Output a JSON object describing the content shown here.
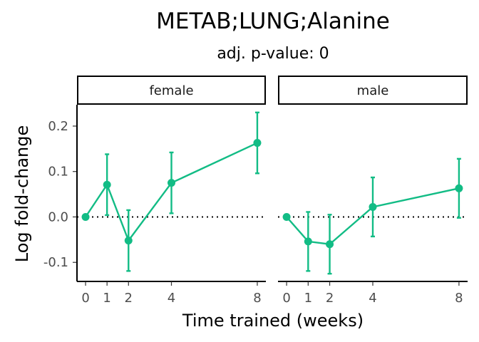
{
  "chart_data": {
    "type": "line",
    "title": "METAB;LUNG;Alanine",
    "subtitle": "adj. p-value: 0",
    "xlabel": "Time trained (weeks)",
    "ylabel": "Log fold-change",
    "x_ticks": [
      "0",
      "1",
      "2",
      "4",
      "8"
    ],
    "y_ticks": [
      "-0.1",
      "0.0",
      "0.1",
      "0.2"
    ],
    "xlim": [
      -0.4,
      8.4
    ],
    "ylim": [
      -0.142,
      0.247
    ],
    "reference_line": {
      "y": 0,
      "style": "dotted"
    },
    "color": "#12BC85",
    "facets": [
      {
        "label": "female",
        "x": [
          0,
          1,
          2,
          4,
          8
        ],
        "y": [
          0.0,
          0.071,
          -0.052,
          0.075,
          0.163
        ],
        "ymin": [
          0.0,
          0.004,
          -0.119,
          0.008,
          0.096
        ],
        "ymax": [
          0.0,
          0.138,
          0.015,
          0.142,
          0.23
        ]
      },
      {
        "label": "male",
        "x": [
          0,
          1,
          2,
          4,
          8
        ],
        "y": [
          0.0,
          -0.054,
          -0.06,
          0.022,
          0.063
        ],
        "ymin": [
          0.0,
          -0.119,
          -0.125,
          -0.043,
          -0.002
        ],
        "ymax": [
          0.0,
          0.011,
          0.005,
          0.087,
          0.128
        ]
      }
    ]
  }
}
